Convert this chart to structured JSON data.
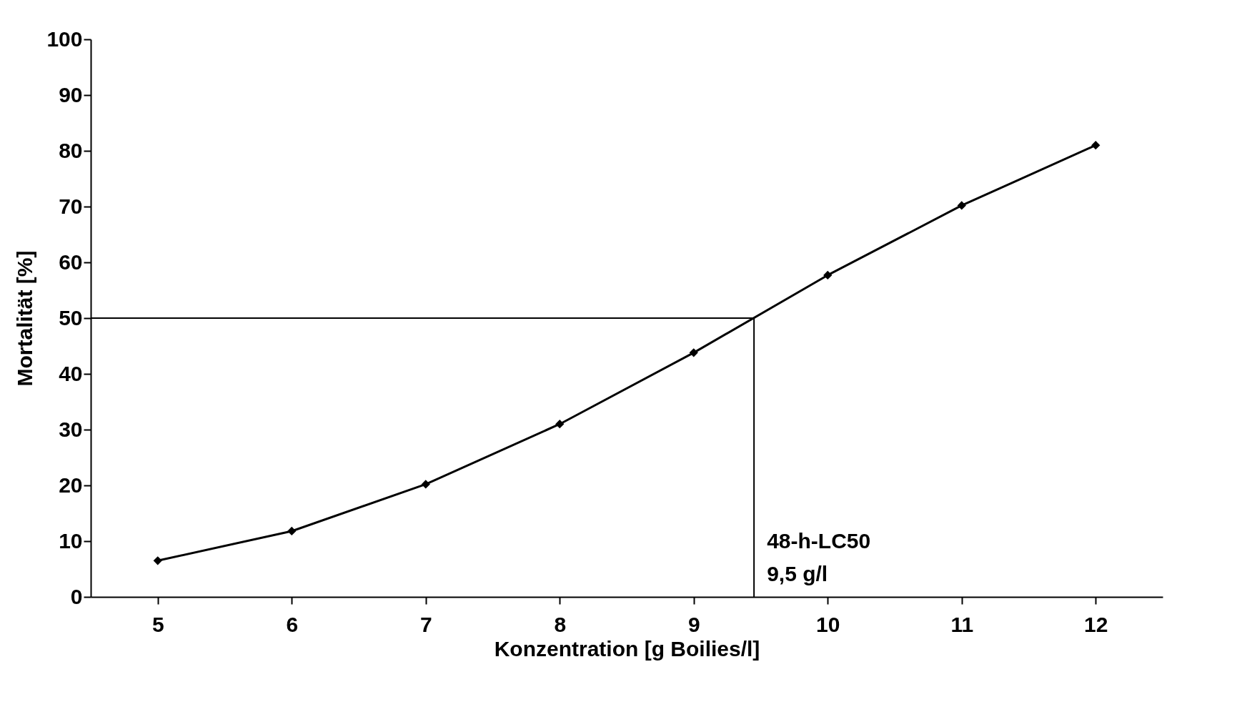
{
  "chart_data": {
    "type": "line",
    "xlabel": "Konzentration [g Boilies/l]",
    "ylabel": "Mortalität [%]",
    "x": [
      5,
      6,
      7,
      8,
      9,
      10,
      11,
      12
    ],
    "series": [
      {
        "color": "#000000",
        "values": [
          6.5,
          11.8,
          20.2,
          31,
          43.8,
          57.7,
          70.2,
          81
        ]
      }
    ],
    "xlim": [
      4.5,
      12.5
    ],
    "xticks": [
      5,
      6,
      7,
      8,
      9,
      10,
      11,
      12
    ],
    "ylim": [
      0,
      100
    ],
    "yticks": [
      0,
      10,
      20,
      30,
      40,
      50,
      60,
      70,
      80,
      90,
      100
    ],
    "ref_lines": [
      {
        "axis": "y",
        "value": 50,
        "label": null
      },
      {
        "axis": "x",
        "value": 9.45,
        "label": "48-h-LC50\n9,5 g/l"
      }
    ],
    "grid": false,
    "marker": "diamond",
    "line_style": "solid"
  }
}
